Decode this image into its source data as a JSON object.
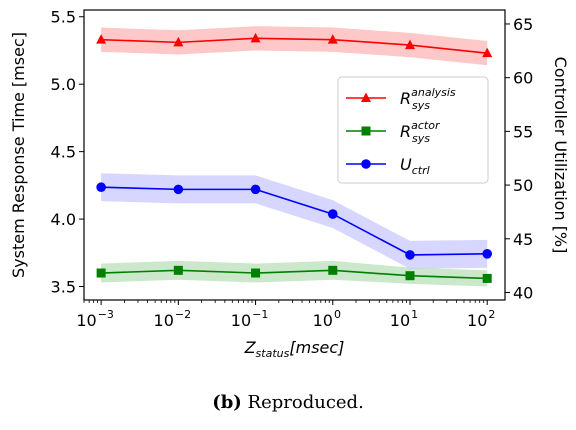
{
  "chart_data": {
    "type": "line",
    "x": [
      0.001,
      0.01,
      0.1,
      1,
      10,
      100
    ],
    "x_ticks": [
      "10",
      "10",
      "10",
      "10",
      "10",
      "10"
    ],
    "x_tick_exponents": [
      "−3",
      "−2",
      "−1",
      "0",
      "1",
      "2"
    ],
    "x_scale": "log",
    "xlabel": {
      "base": "Z",
      "sub": "status",
      "rest": "[msec]"
    },
    "ylabel_left": "System Response Time [msec]",
    "ylabel_right": "Controller Utilization [%]",
    "ylim_left": [
      3.4,
      5.55
    ],
    "ylim_right": [
      39.3,
      66.3
    ],
    "yticks_left": [
      3.5,
      4.0,
      4.5,
      5.0,
      5.5
    ],
    "yticks_right": [
      40,
      45,
      50,
      55,
      60,
      65
    ],
    "series": [
      {
        "name": "R_sys^analysis",
        "legend_base": "R",
        "legend_sub": "sys",
        "legend_sup": "analysis",
        "axis": "left",
        "color": "#ff0000",
        "band_color": "#ffb0b0",
        "marker": "triangle",
        "values": [
          5.33,
          5.31,
          5.34,
          5.33,
          5.29,
          5.23
        ],
        "band": [
          0.09,
          0.09,
          0.09,
          0.09,
          0.09,
          0.09
        ]
      },
      {
        "name": "R_sys^actor",
        "legend_base": "R",
        "legend_sub": "sys",
        "legend_sup": "actor",
        "axis": "left",
        "color": "#008000",
        "band_color": "#b5deb5",
        "marker": "square",
        "values": [
          3.6,
          3.62,
          3.6,
          3.62,
          3.58,
          3.56
        ],
        "band": [
          0.07,
          0.07,
          0.07,
          0.07,
          0.06,
          0.06
        ]
      },
      {
        "name": "U_ctrl",
        "legend_base": "U",
        "legend_sub": "ctrl",
        "legend_sup": "",
        "axis": "right",
        "color": "#0000ff",
        "band_color": "#c4c4ff",
        "marker": "circle",
        "values": [
          49.8,
          49.6,
          49.6,
          47.3,
          43.5,
          43.6
        ],
        "band": [
          1.3,
          1.3,
          1.3,
          1.3,
          1.3,
          1.3
        ]
      }
    ],
    "legend_position": "center-right",
    "grid": false
  },
  "caption": {
    "label": "(b)",
    "text": " Reproduced."
  }
}
